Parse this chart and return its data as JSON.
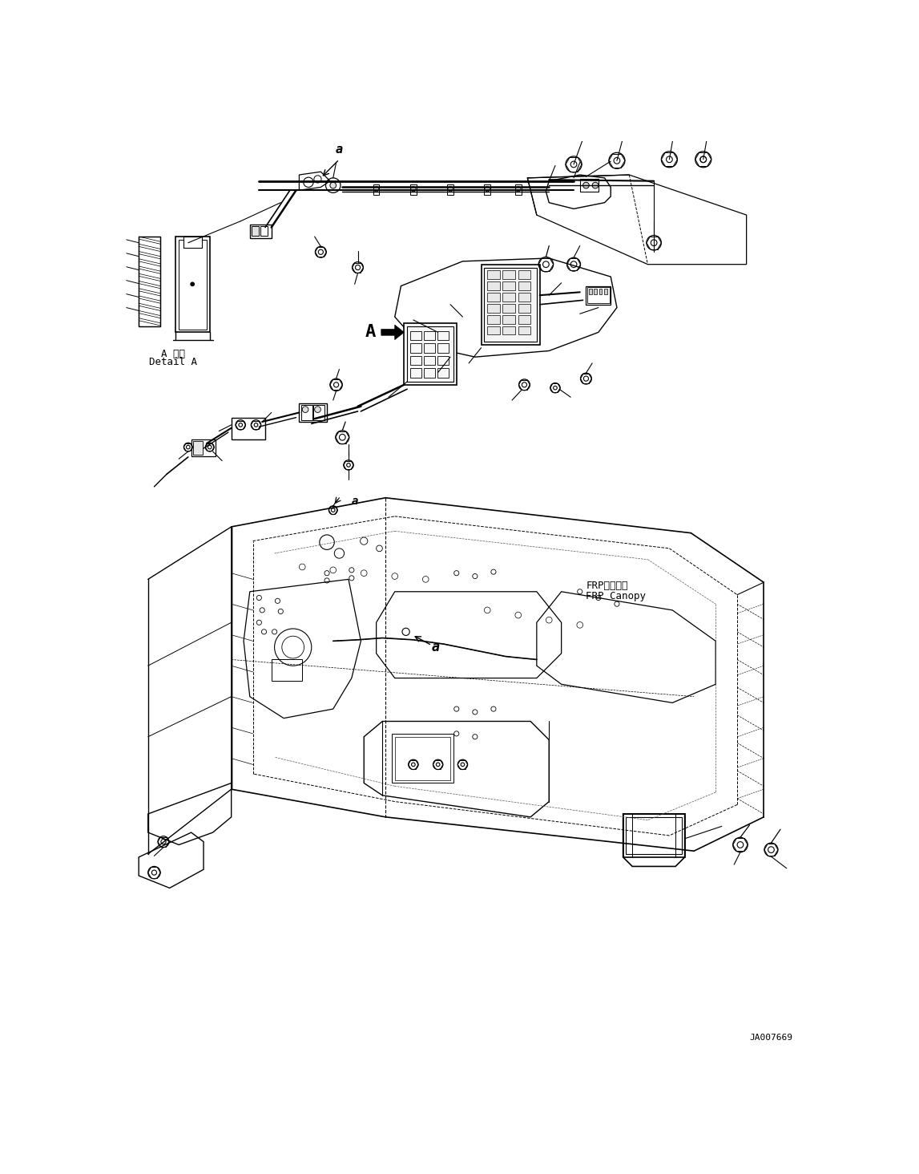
{
  "bg_color": "#ffffff",
  "line_color": "#000000",
  "fig_width": 11.47,
  "fig_height": 14.64,
  "dpi": 100,
  "detail_label_line1": "A 詳細",
  "detail_label_line2": "Detail A",
  "frp_label_line1": "FRPキャノピ",
  "frp_label_line2": "FRP Canopy",
  "ref_code": "JA007669",
  "label_a_top": "a",
  "label_a_bottom": "a",
  "label_A": "A"
}
